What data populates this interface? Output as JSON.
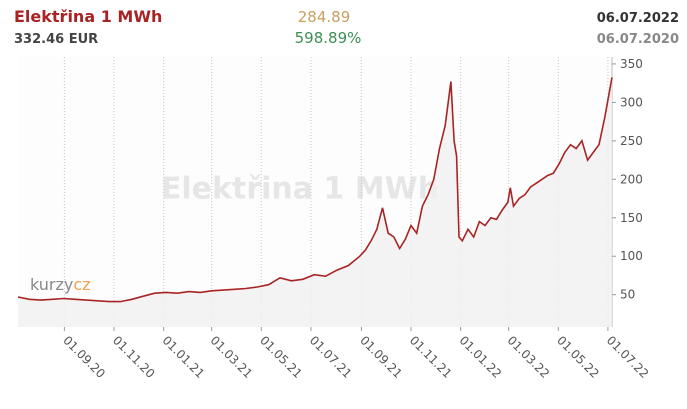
{
  "header": {
    "price": "332.46 EUR",
    "change": "284.89",
    "change_pct": "598.89%",
    "date": "06.07.2022",
    "date_prev": "06.07.2020"
  },
  "logo": {
    "left": "kurzy",
    "right": "cz"
  },
  "chart_data": {
    "type": "line",
    "title": "Elektřina 1 MWh",
    "x": [
      "06.07.20",
      "20.07.20",
      "03.08.20",
      "17.08.20",
      "31.08.20",
      "14.09.20",
      "28.09.20",
      "12.10.20",
      "26.10.20",
      "09.11.20",
      "23.11.20",
      "07.12.20",
      "21.12.20",
      "04.01.21",
      "18.01.21",
      "01.02.21",
      "15.02.21",
      "01.03.21",
      "15.03.21",
      "29.03.21",
      "12.04.21",
      "26.04.21",
      "10.05.21",
      "24.05.21",
      "07.06.21",
      "21.06.21",
      "05.07.21",
      "19.07.21",
      "02.08.21",
      "16.08.21",
      "30.08.21",
      "06.09.21",
      "13.09.21",
      "20.09.21",
      "27.09.21",
      "04.10.21",
      "11.10.21",
      "18.10.21",
      "25.10.21",
      "01.11.21",
      "08.11.21",
      "15.11.21",
      "22.11.21",
      "29.11.21",
      "06.12.21",
      "13.12.21",
      "20.12.21",
      "24.12.21",
      "27.12.21",
      "30.12.21",
      "03.01.22",
      "10.01.22",
      "17.01.22",
      "24.01.22",
      "31.01.22",
      "07.02.22",
      "14.02.22",
      "21.02.22",
      "28.02.22",
      "03.03.22",
      "07.03.22",
      "14.03.22",
      "21.03.22",
      "28.03.22",
      "04.04.22",
      "11.04.22",
      "18.04.22",
      "25.04.22",
      "02.05.22",
      "09.05.22",
      "16.05.22",
      "23.05.22",
      "30.05.22",
      "06.06.22",
      "13.06.22",
      "20.06.22",
      "27.06.22",
      "06.07.22"
    ],
    "series": [
      {
        "color": "#a82424",
        "values": [
          47,
          44,
          43,
          44,
          45,
          44,
          43,
          42,
          41,
          41,
          44,
          48,
          52,
          53,
          52,
          54,
          53,
          55,
          56,
          57,
          58,
          60,
          63,
          72,
          68,
          70,
          76,
          74,
          82,
          88,
          100,
          108,
          120,
          135,
          163,
          130,
          125,
          110,
          122,
          140,
          130,
          165,
          180,
          200,
          240,
          270,
          327,
          250,
          230,
          125,
          120,
          135,
          125,
          145,
          140,
          150,
          148,
          160,
          170,
          189,
          165,
          175,
          180,
          190,
          195,
          200,
          205,
          208,
          220,
          235,
          245,
          240,
          250,
          225,
          235,
          245,
          280,
          332.46
        ]
      }
    ],
    "xlim": [
      "06.07.20",
      "06.07.22"
    ],
    "xticks": [
      "01.09.20",
      "01.11.20",
      "01.01.21",
      "01.03.21",
      "01.05.21",
      "01.07.21",
      "01.09.21",
      "01.11.21",
      "01.01.22",
      "01.03.22",
      "01.05.22",
      "01.07.22"
    ],
    "ylim": [
      8,
      359
    ],
    "yticks": [
      50,
      100,
      150,
      200,
      250,
      300,
      350
    ],
    "grid": true
  }
}
